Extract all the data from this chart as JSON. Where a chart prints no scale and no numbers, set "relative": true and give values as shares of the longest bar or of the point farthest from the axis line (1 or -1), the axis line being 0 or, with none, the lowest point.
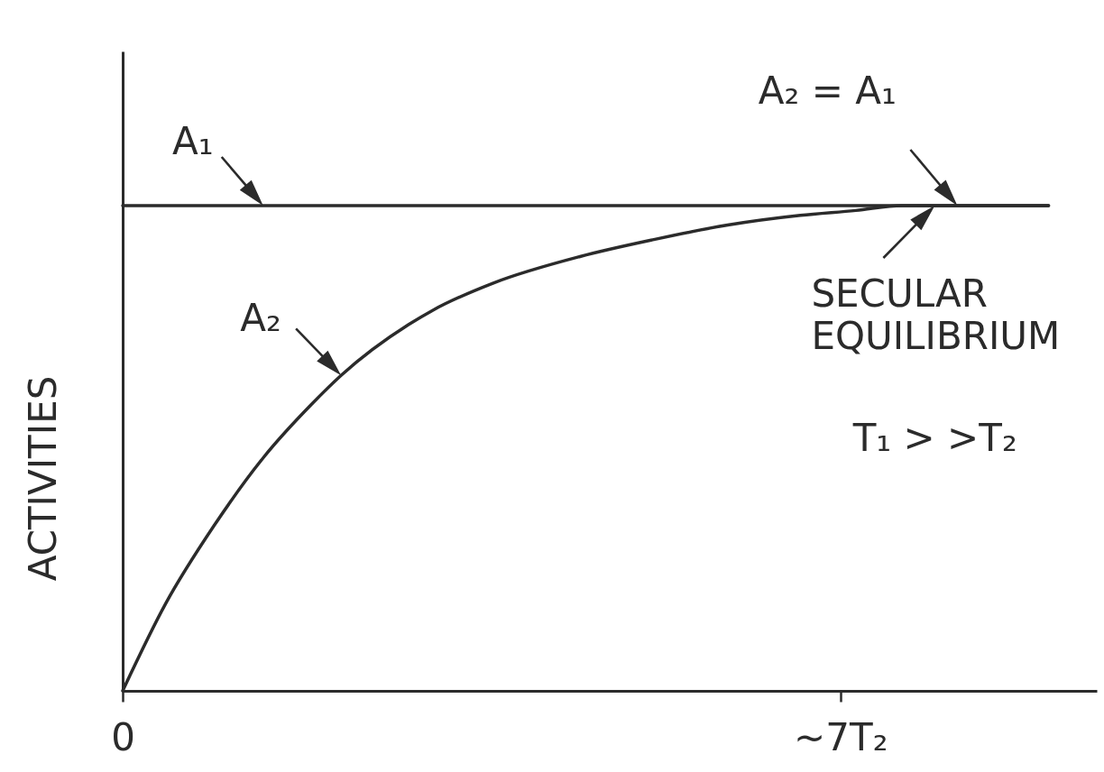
{
  "chart_data": {
    "type": "line",
    "ylabel": "ACTIVITIES",
    "relative": true,
    "x": [
      0,
      0.42,
      0.89,
      1.37,
      1.84,
      2.13,
      2.79,
      3.03,
      3.61,
      4.46,
      5.18,
      5.9,
      6.61,
      7.15,
      7.6,
      9.03
    ],
    "xlim": [
      0,
      9.5
    ],
    "xticks": [
      0,
      {
        "value": 7,
        "label": "~7T₂"
      }
    ],
    "series": [
      {
        "name": "A₁",
        "color": "#2b2b2b",
        "values": [
          1,
          1,
          1,
          1,
          1,
          1,
          1,
          1,
          1,
          1,
          1,
          1,
          1,
          1,
          1,
          1
        ]
      },
      {
        "name": "A₂",
        "color": "#2b2b2b",
        "values": [
          0,
          0.18,
          0.34,
          0.48,
          0.59,
          0.65,
          0.755,
          0.785,
          0.84,
          0.895,
          0.93,
          0.96,
          0.98,
          0.99,
          1,
          1
        ]
      }
    ],
    "annotations": [
      {
        "text": "A₂ = A₁",
        "x": 8.14,
        "y": 1
      },
      {
        "text": "SECULAR EQUILIBRIUM",
        "x": 7.92,
        "y": 1
      },
      "T₁ > >T₂"
    ]
  }
}
